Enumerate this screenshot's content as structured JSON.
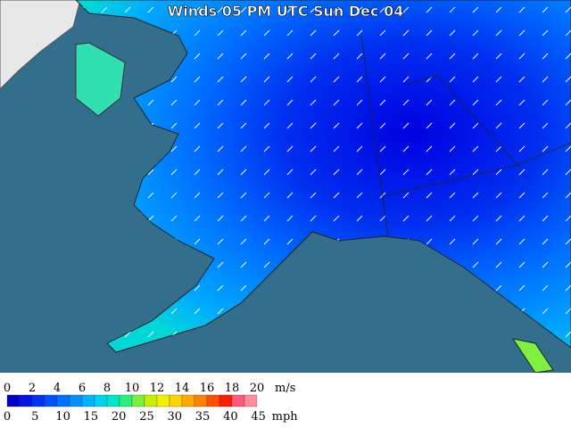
{
  "title": "Winds 05 PM UTC Sun Dec 04",
  "legend": {
    "ms_ticks": [
      0,
      2,
      4,
      6,
      8,
      10,
      12,
      14,
      16,
      18,
      20
    ],
    "ms_unit": "m/s",
    "mph_ticks": [
      0,
      5,
      10,
      15,
      20,
      25,
      30,
      35,
      40,
      45
    ],
    "mph_unit": "mph",
    "colors": [
      "#0000c8",
      "#0014e6",
      "#0032f5",
      "#0050ff",
      "#0070ff",
      "#0090ff",
      "#00b4ff",
      "#00d2f0",
      "#00e6c8",
      "#28f078",
      "#78f03c",
      "#c8f000",
      "#f0f000",
      "#ffd200",
      "#ffaa00",
      "#ff8200",
      "#ff5000",
      "#ff1e00",
      "#ff5a78",
      "#ff8ca0"
    ]
  }
}
